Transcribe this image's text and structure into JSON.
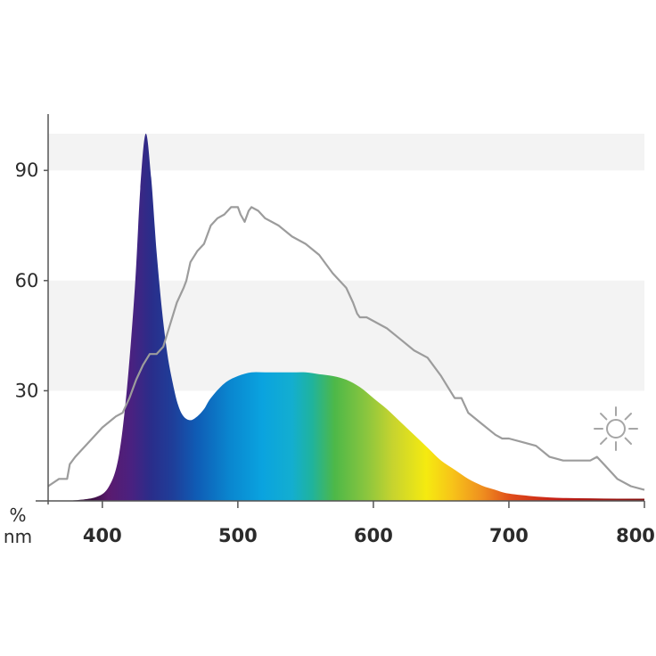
{
  "chart_data": {
    "type": "area",
    "title": "",
    "xlabel": "nm",
    "ylabel": "%",
    "xlim": [
      360,
      800
    ],
    "ylim": [
      0,
      100
    ],
    "x_ticks": [
      400,
      500,
      600,
      700,
      800
    ],
    "y_ticks": [
      30,
      60,
      90
    ],
    "grid": "alternating horizontal bands",
    "series": [
      {
        "style": "spectrum-filled area",
        "x": [
          375,
          395,
          405,
          412,
          418,
          424,
          428,
          432,
          436,
          440,
          444,
          448,
          452,
          456,
          460,
          465,
          470,
          475,
          480,
          490,
          500,
          510,
          520,
          530,
          540,
          550,
          560,
          570,
          580,
          590,
          600,
          610,
          620,
          630,
          640,
          650,
          660,
          670,
          680,
          690,
          700,
          720,
          740,
          760,
          780,
          800
        ],
        "y": [
          0,
          1,
          4,
          12,
          30,
          58,
          85,
          100,
          88,
          68,
          52,
          40,
          32,
          26,
          23,
          22,
          23,
          25,
          28,
          32,
          34,
          35,
          35,
          35,
          35,
          35,
          34.5,
          34,
          33,
          31,
          28,
          25,
          21.5,
          18,
          14.5,
          11,
          8.5,
          6,
          4.2,
          3,
          2,
          1.2,
          0.8,
          0.7,
          0.6,
          0.6
        ]
      },
      {
        "style": "grey line",
        "icon": "sun-icon",
        "x": [
          360,
          368,
          374,
          376,
          380,
          390,
          400,
          410,
          415,
          420,
          425,
          430,
          435,
          440,
          445,
          450,
          455,
          460,
          462,
          465,
          470,
          475,
          480,
          485,
          490,
          495,
          500,
          502,
          505,
          508,
          510,
          515,
          520,
          525,
          530,
          540,
          550,
          560,
          570,
          580,
          585,
          588,
          590,
          595,
          600,
          610,
          620,
          630,
          640,
          650,
          655,
          660,
          665,
          670,
          680,
          690,
          695,
          700,
          710,
          720,
          730,
          740,
          750,
          760,
          765,
          770,
          775,
          780,
          790,
          800
        ],
        "y": [
          4,
          6,
          6,
          10,
          12,
          16,
          20,
          23,
          24,
          28,
          33,
          37,
          40,
          40,
          42,
          48,
          54,
          58,
          60,
          65,
          68,
          70,
          75,
          77,
          78,
          80,
          80,
          78,
          76,
          79,
          80,
          79,
          77,
          76,
          75,
          72,
          70,
          67,
          62,
          58,
          54,
          51,
          50,
          50,
          49,
          47,
          44,
          41,
          39,
          34,
          31,
          28,
          28,
          24,
          21,
          18,
          17,
          17,
          16,
          15,
          12,
          11,
          11,
          11,
          12,
          10,
          8,
          6,
          4,
          3
        ]
      }
    ]
  }
}
